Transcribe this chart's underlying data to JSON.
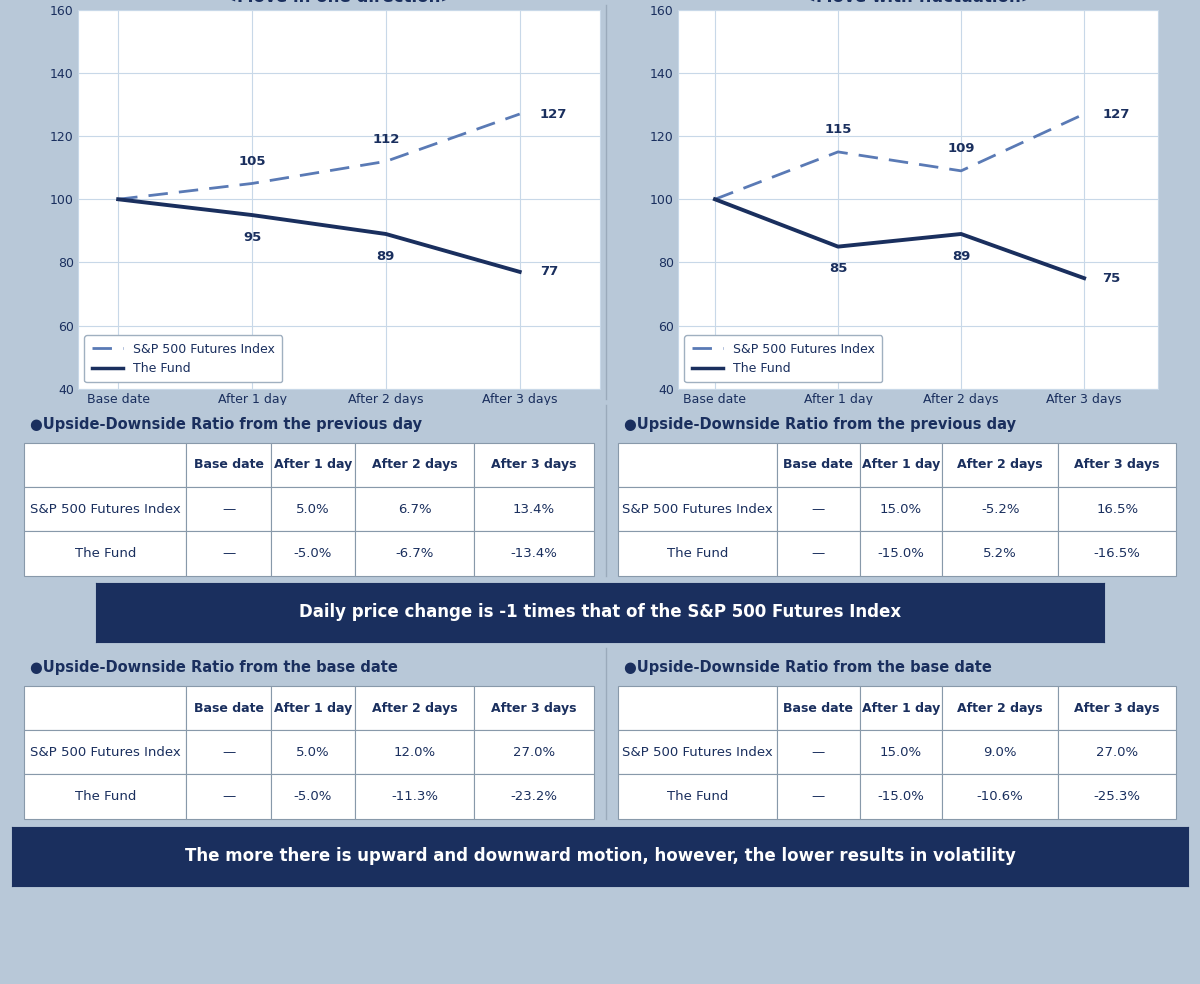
{
  "background_color": "#b8c8d8",
  "chart_bg_color": "#ffffff",
  "panel_bg_color": "#b8c8d8",
  "dark_blue": "#1a2f5e",
  "line_blue": "#5a7ab5",
  "chart1_title": "<Move in one direction>",
  "chart2_title": "<Move with fluctuation>",
  "x_labels": [
    "Base date",
    "After 1 day",
    "After 2 days",
    "After 3 days"
  ],
  "chart1_index": [
    100,
    105,
    112,
    127
  ],
  "chart1_fund": [
    100,
    95,
    89,
    77
  ],
  "chart2_index": [
    100,
    115,
    109,
    127
  ],
  "chart2_fund": [
    100,
    85,
    89,
    75
  ],
  "y_min": 40,
  "y_max": 160,
  "y_ticks": [
    40,
    60,
    80,
    100,
    120,
    140,
    160
  ],
  "legend_index": "S&P 500 Futures Index",
  "legend_fund": "The Fund",
  "table1_prev_title": "●Upside-Downside Ratio from the previous day",
  "table2_prev_title": "●Upside-Downside Ratio from the previous day",
  "table1_base_title": "●Upside-Downside Ratio from the base date",
  "table2_base_title": "●Upside-Downside Ratio from the base date",
  "col_headers": [
    "",
    "Base date",
    "After 1 day",
    "After 2 days",
    "After 3 days"
  ],
  "table1_prev_data": [
    [
      "S&P 500 Futures Index",
      "—",
      "5.0%",
      "6.7%",
      "13.4%"
    ],
    [
      "The Fund",
      "—",
      "-5.0%",
      "-6.7%",
      "-13.4%"
    ]
  ],
  "table2_prev_data": [
    [
      "S&P 500 Futures Index",
      "—",
      "15.0%",
      "-5.2%",
      "16.5%"
    ],
    [
      "The Fund",
      "—",
      "-15.0%",
      "5.2%",
      "-16.5%"
    ]
  ],
  "table1_base_data": [
    [
      "S&P 500 Futures Index",
      "—",
      "5.0%",
      "12.0%",
      "27.0%"
    ],
    [
      "The Fund",
      "—",
      "-5.0%",
      "-11.3%",
      "-23.2%"
    ]
  ],
  "table2_base_data": [
    [
      "S&P 500 Futures Index",
      "—",
      "15.0%",
      "9.0%",
      "27.0%"
    ],
    [
      "The Fund",
      "—",
      "-15.0%",
      "-10.6%",
      "-25.3%"
    ]
  ],
  "banner1_text": "Daily price change is -1 times that of the S&P 500 Futures Index",
  "banner2_text": "The more there is upward and downward motion, however, the lower results in volatility",
  "banner_bg": "#1a2f5e",
  "banner_text_color": "#ffffff"
}
